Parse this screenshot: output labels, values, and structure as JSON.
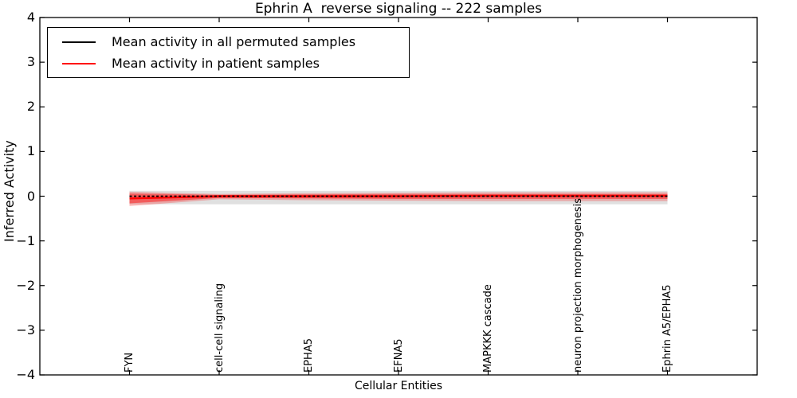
{
  "title": "Ephrin A  reverse signaling -- 222 samples",
  "axes": {
    "ylabel": "Inferred Activity",
    "xlabel": "Cellular Entities"
  },
  "legend": {
    "entries": [
      {
        "label": "Mean activity in all permuted samples",
        "color": "#000000"
      },
      {
        "label": "Mean activity in patient samples",
        "color": "#ff0000"
      }
    ]
  },
  "chart_data": {
    "type": "line",
    "title": "Ephrin A  reverse signaling -- 222 samples",
    "xlabel": "Cellular Entities",
    "ylabel": "Inferred Activity",
    "ylim": [
      -4,
      4
    ],
    "yticks": [
      -4,
      -3,
      -2,
      -1,
      0,
      1,
      2,
      3,
      4
    ],
    "grid": false,
    "legend_position": "upper left",
    "categories": [
      "FYN",
      "cell-cell signaling",
      "EPHA5",
      "EFNA5",
      "MAPKKK cascade",
      "neuron projection morphogenesis",
      "Ephrin A5/EPHA5"
    ],
    "series": [
      {
        "name": "Mean activity in all permuted samples",
        "color": "#000000",
        "style": "dashed",
        "width": 1.8,
        "values": [
          0.0,
          0.0,
          0.0,
          0.0,
          0.0,
          0.0,
          0.0
        ]
      },
      {
        "name": "Mean activity in patient samples",
        "color": "#ff0000",
        "style": "solid",
        "width": 2.4,
        "values": [
          -0.05,
          0.0,
          0.0,
          0.0,
          0.01,
          0.01,
          0.01
        ]
      }
    ],
    "bands": [
      {
        "name": "permuted-range",
        "color": "#999999",
        "opacity": 0.3,
        "upper": [
          0.12,
          0.12,
          0.12,
          0.12,
          0.12,
          0.12,
          0.12
        ],
        "lower": [
          -0.18,
          -0.18,
          -0.18,
          -0.18,
          -0.18,
          -0.18,
          -0.18
        ]
      },
      {
        "name": "patient-range-outer",
        "color": "#ff0000",
        "opacity": 0.25,
        "upper": [
          0.1,
          0.05,
          0.07,
          0.08,
          0.09,
          0.09,
          0.09
        ],
        "lower": [
          -0.22,
          -0.07,
          -0.09,
          -0.1,
          -0.11,
          -0.11,
          -0.11
        ]
      },
      {
        "name": "patient-range-inner",
        "color": "#ff0000",
        "opacity": 0.45,
        "upper": [
          0.06,
          0.03,
          0.04,
          0.05,
          0.05,
          0.05,
          0.05
        ],
        "lower": [
          -0.16,
          -0.04,
          -0.05,
          -0.06,
          -0.06,
          -0.06,
          -0.06
        ]
      }
    ]
  }
}
